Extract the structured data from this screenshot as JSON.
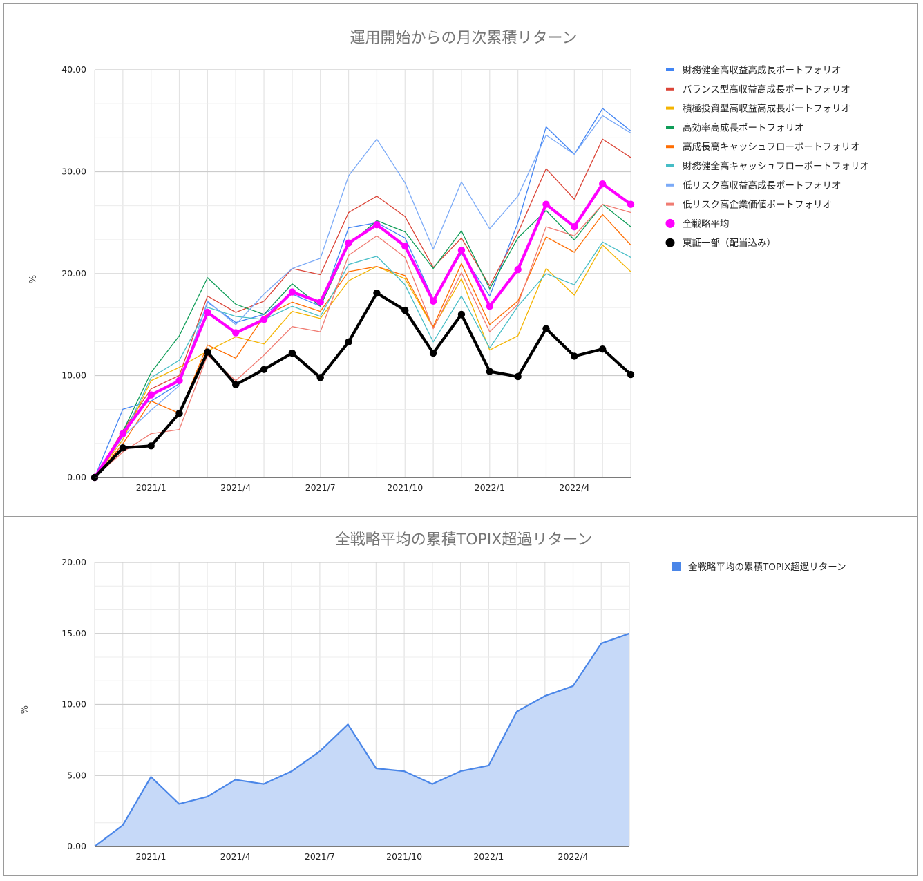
{
  "chart_data": [
    {
      "type": "line",
      "title": "運用開始からの月次累積リターン",
      "xlabel": "",
      "ylabel": "%",
      "ylim": [
        0,
        40
      ],
      "y_ticks": [
        "0.00",
        "10.00",
        "20.00",
        "30.00",
        "40.00"
      ],
      "x_tick_labels": [
        "2021/1",
        "2021/4",
        "2021/7",
        "2021/10",
        "2022/1",
        "2022/4"
      ],
      "x_tick_index": [
        2,
        5,
        8,
        11,
        14,
        17
      ],
      "grid": true,
      "legend_position": "right",
      "x": [
        "2020/11",
        "2020/12",
        "2021/1",
        "2021/2",
        "2021/3",
        "2021/4",
        "2021/5",
        "2021/6",
        "2021/7",
        "2021/8",
        "2021/9",
        "2021/10",
        "2021/11",
        "2021/12",
        "2022/1",
        "2022/2",
        "2022/3",
        "2022/4",
        "2022/5",
        "2022/6"
      ],
      "series": [
        {
          "name": "財務健全高収益高成長ポートフォリオ",
          "color": "#4285f4",
          "width": 1.3,
          "values": [
            0,
            6.7,
            7.5,
            9.2,
            17.2,
            15.2,
            16.0,
            18.0,
            16.8,
            24.5,
            25.0,
            23.5,
            17.5,
            22.0,
            17.8,
            25.0,
            34.4,
            31.7,
            36.2,
            34.0
          ]
        },
        {
          "name": "バランス型高収益高成長ポートフォリオ",
          "color": "#db4437",
          "width": 1.3,
          "values": [
            0,
            4.6,
            8.7,
            10.0,
            17.8,
            16.2,
            17.3,
            20.5,
            19.9,
            26.0,
            27.6,
            25.6,
            20.6,
            23.5,
            18.8,
            24.0,
            30.3,
            27.3,
            33.2,
            31.4
          ]
        },
        {
          "name": "積極投資型高収益高成長ポートフォリオ",
          "color": "#f4b400",
          "width": 1.3,
          "values": [
            0,
            3.7,
            9.5,
            10.8,
            12.4,
            13.8,
            13.1,
            16.3,
            15.6,
            19.3,
            20.7,
            19.5,
            14.7,
            19.5,
            12.5,
            13.9,
            20.5,
            17.9,
            22.8,
            20.2
          ]
        },
        {
          "name": "高効率高成長ポートフォリオ",
          "color": "#0f9d58",
          "width": 1.3,
          "values": [
            0,
            4.5,
            10.3,
            13.9,
            19.6,
            17.0,
            16.0,
            19.0,
            16.8,
            22.8,
            25.2,
            24.1,
            20.5,
            24.2,
            18.5,
            23.5,
            26.2,
            23.3,
            26.8,
            24.6
          ]
        },
        {
          "name": "高成長高キャッシュフローポートフォリオ",
          "color": "#ff6d01",
          "width": 1.3,
          "values": [
            0,
            3.3,
            7.5,
            6.3,
            13.0,
            11.7,
            15.8,
            17.2,
            16.3,
            20.2,
            20.7,
            19.8,
            14.8,
            21.0,
            15.0,
            17.3,
            23.6,
            22.1,
            25.8,
            22.8
          ]
        },
        {
          "name": "財務健全高キャッシュフローポートフォリオ",
          "color": "#46bdc6",
          "width": 1.3,
          "values": [
            0,
            4.0,
            9.8,
            11.5,
            16.7,
            15.8,
            15.5,
            16.8,
            15.8,
            20.9,
            21.7,
            18.9,
            13.3,
            17.8,
            12.7,
            16.8,
            20.0,
            18.9,
            23.1,
            21.6
          ]
        },
        {
          "name": "低リスク高収益高成長ポートフォリオ",
          "color": "#7baaf7",
          "width": 1.3,
          "values": [
            0,
            4.0,
            6.6,
            9.0,
            17.3,
            15.0,
            18.0,
            20.5,
            21.5,
            29.6,
            33.2,
            28.9,
            22.4,
            29.0,
            24.4,
            27.6,
            33.6,
            31.7,
            35.5,
            33.8
          ]
        },
        {
          "name": "低リスク高企業価値ポートフォリオ",
          "color": "#f07b72",
          "width": 1.3,
          "values": [
            0,
            2.5,
            4.3,
            4.7,
            12.0,
            9.5,
            12.0,
            14.8,
            14.3,
            21.8,
            23.7,
            21.6,
            14.6,
            20.1,
            14.3,
            17.0,
            24.6,
            23.7,
            26.8,
            26.0
          ]
        },
        {
          "name": "全戦略平均",
          "color": "#ff00ff",
          "width": 4.2,
          "marker": "circle",
          "values": [
            0,
            4.3,
            8.1,
            9.5,
            16.2,
            14.2,
            15.5,
            18.2,
            17.2,
            23.0,
            24.8,
            22.7,
            17.3,
            22.3,
            16.8,
            20.4,
            26.8,
            24.6,
            28.8,
            26.8
          ]
        },
        {
          "name": "東証一部（配当込み）",
          "color": "#000000",
          "width": 4.2,
          "marker": "circle",
          "values": [
            0,
            2.9,
            3.1,
            6.3,
            12.3,
            9.1,
            10.6,
            12.2,
            9.8,
            13.3,
            18.1,
            16.4,
            12.2,
            16.0,
            10.4,
            9.9,
            14.6,
            11.9,
            12.6,
            10.1
          ]
        }
      ]
    },
    {
      "type": "area",
      "title": "全戦略平均の累積TOPIX超過リターン",
      "xlabel": "",
      "ylabel": "%",
      "ylim": [
        0,
        20
      ],
      "y_ticks": [
        "0.00",
        "5.00",
        "10.00",
        "15.00",
        "20.00"
      ],
      "x_tick_labels": [
        "2021/1",
        "2021/4",
        "2021/7",
        "2021/10",
        "2022/1",
        "2022/4"
      ],
      "x_tick_index": [
        2,
        5,
        8,
        11,
        14,
        17
      ],
      "grid": true,
      "legend_position": "right",
      "x": [
        "2020/11",
        "2020/12",
        "2021/1",
        "2021/2",
        "2021/3",
        "2021/4",
        "2021/5",
        "2021/6",
        "2021/7",
        "2021/8",
        "2021/9",
        "2021/10",
        "2021/11",
        "2021/12",
        "2022/1",
        "2022/2",
        "2022/3",
        "2022/4",
        "2022/5",
        "2022/6"
      ],
      "series": [
        {
          "name": "全戦略平均の累積TOPIX超過リターン",
          "color": "#4a86e8",
          "fill": "#c6d9f8",
          "values": [
            0,
            1.5,
            4.9,
            3.0,
            3.5,
            4.7,
            4.4,
            5.3,
            6.7,
            8.6,
            5.5,
            5.3,
            4.4,
            5.3,
            5.7,
            9.5,
            10.6,
            11.3,
            14.3,
            15.0
          ]
        }
      ]
    }
  ]
}
